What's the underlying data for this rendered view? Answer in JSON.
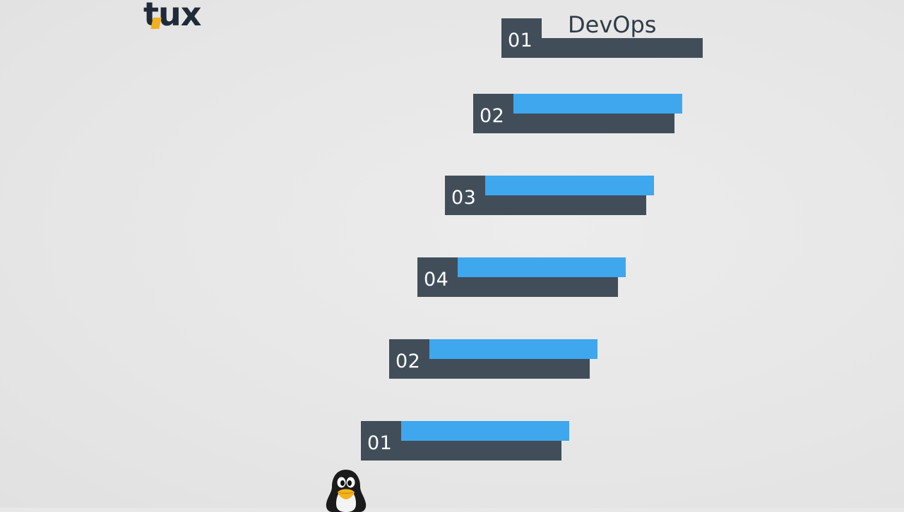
{
  "logo": {
    "first": "t",
    "rest": "ux"
  },
  "top_step": {
    "number": "01",
    "title": "DevOps"
  },
  "steps": [
    {
      "number": "02"
    },
    {
      "number": "03"
    },
    {
      "number": "04"
    },
    {
      "number": "02"
    },
    {
      "number": "01"
    }
  ],
  "colors": {
    "background": "#e8e8e8",
    "dark": "#414e5a",
    "blue": "#3ea7ee",
    "logo_accent": "#f2b01e",
    "title": "#2f3b47"
  },
  "icons": {
    "mascot": "penguin-icon"
  }
}
